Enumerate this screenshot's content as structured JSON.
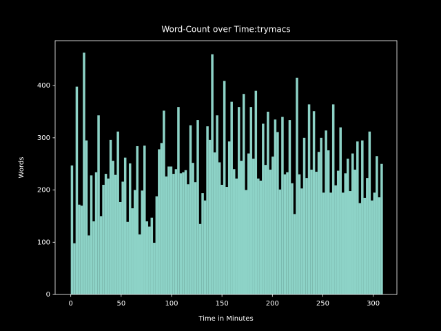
{
  "chart_data": {
    "type": "bar",
    "title": "Word-Count over Time:trymacs",
    "xlabel": "Time in Minutes",
    "ylabel": "Words",
    "color": "#8dd3c7",
    "background": "#000000",
    "x": [
      0,
      2.4,
      4.8,
      7.2,
      9.6,
      12,
      14.4,
      16.8,
      19.2,
      21.6,
      24,
      26.4,
      28.8,
      31.2,
      33.6,
      36,
      38.4,
      40.8,
      43.2,
      45.6,
      48,
      50.4,
      52.8,
      55.2,
      57.6,
      60,
      62.4,
      64.8,
      67.2,
      69.6,
      72,
      74.4,
      76.8,
      79.2,
      81.6,
      84,
      86.4,
      88.8,
      91.2,
      93.6,
      96,
      98.4,
      100.8,
      103.2,
      105.6,
      108,
      110.4,
      112.8,
      115.2,
      117.6,
      120,
      122.4,
      124.8,
      127.2,
      129.6,
      132,
      134.4,
      136.8,
      139.2,
      141.6,
      144,
      146.4,
      148.8,
      151.2,
      153.6,
      156,
      158.4,
      160.8,
      163.2,
      165.6,
      168,
      170.4,
      172.8,
      175.2,
      177.6,
      180,
      182.4,
      184.8,
      187.2,
      189.6,
      192,
      194.4,
      196.8,
      199.2,
      201.6,
      204,
      206.4,
      208.8,
      211.2,
      213.6,
      216,
      218.4,
      220.8,
      223.2,
      225.6,
      228,
      230.4,
      232.8,
      235.2,
      237.6,
      240,
      242.4,
      244.8,
      247.2,
      249.6,
      252,
      254.4,
      256.8,
      259.2,
      261.6,
      264,
      266.4,
      268.8,
      271.2,
      273.6,
      276,
      278.4,
      280.8,
      283.2,
      285.6,
      288,
      290.4,
      292.8,
      295.2,
      297.6,
      300,
      302.4,
      304.8,
      307.2
    ],
    "values": [
      247,
      98,
      398,
      172,
      170,
      463,
      295,
      113,
      228,
      140,
      234,
      343,
      150,
      210,
      231,
      222,
      296,
      256,
      229,
      312,
      177,
      216,
      262,
      139,
      251,
      165,
      200,
      284,
      115,
      199,
      285,
      140,
      130,
      147,
      99,
      188,
      278,
      290,
      352,
      226,
      245,
      245,
      231,
      240,
      359,
      232,
      234,
      238,
      211,
      324,
      252,
      215,
      334,
      135,
      194,
      180,
      322,
      296,
      460,
      272,
      343,
      253,
      210,
      409,
      206,
      293,
      369,
      240,
      222,
      359,
      256,
      384,
      200,
      270,
      359,
      260,
      390,
      222,
      218,
      327,
      248,
      350,
      239,
      264,
      335,
      311,
      201,
      340,
      230,
      234,
      334,
      213,
      154,
      415,
      230,
      203,
      300,
      223,
      364,
      239,
      351,
      235,
      273,
      300,
      195,
      314,
      276,
      195,
      364,
      209,
      237,
      320,
      195,
      232,
      260,
      198,
      270,
      239,
      293,
      175,
      295,
      185,
      223,
      312,
      180,
      195,
      265,
      186,
      250
    ],
    "xlim": [
      -15.5,
      323.5
    ],
    "ylim": [
      0,
      486
    ],
    "xticks": [
      0,
      50,
      100,
      150,
      200,
      250,
      300
    ],
    "yticks": [
      0,
      100,
      200,
      300,
      400
    ]
  }
}
